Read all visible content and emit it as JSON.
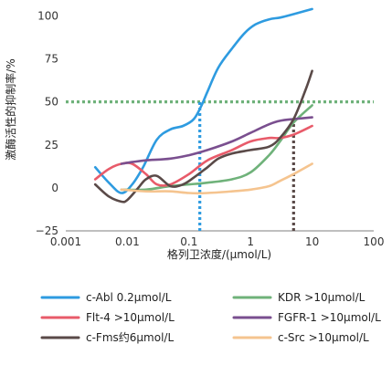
{
  "chart_data": {
    "type": "line",
    "xlabel": "格列卫浓度/(μmol/L)",
    "ylabel": "激酶活性的抑制率/%",
    "xscale": "log",
    "xlim": [
      0.001,
      100
    ],
    "ylim": [
      -25,
      105
    ],
    "x_ticks": [
      0.001,
      0.01,
      0.1,
      1,
      10,
      100
    ],
    "x_tick_labels": [
      "0.001",
      "0.01",
      "0.1",
      "1",
      "10",
      "100"
    ],
    "y_ticks": [
      100,
      75,
      50,
      25,
      0,
      -25
    ],
    "y_tick_labels": [
      "100",
      "75",
      "50",
      "25",
      "0",
      "−25"
    ],
    "grid": false,
    "legend_position": "bottom",
    "reference_lines": [
      {
        "type": "horizontal",
        "y": 50,
        "color": "#6fb27a",
        "style": "dotted"
      },
      {
        "type": "vertical",
        "x": 0.15,
        "y_to": 50,
        "color": "#2e9be0",
        "style": "dotted"
      },
      {
        "type": "vertical",
        "x": 5,
        "y_to": 41,
        "color": "#5a4a48",
        "style": "dotted"
      }
    ],
    "series": [
      {
        "name": "c-Abl 0.2μmol/L",
        "color": "#2e9be0",
        "x": [
          0.003,
          0.005,
          0.008,
          0.012,
          0.018,
          0.03,
          0.05,
          0.08,
          0.12,
          0.16,
          0.2,
          0.3,
          0.5,
          0.8,
          1.2,
          2,
          3,
          5,
          10
        ],
        "y": [
          12,
          3,
          -3,
          2,
          12,
          28,
          34,
          36,
          40,
          48,
          56,
          70,
          81,
          90,
          95,
          98,
          99,
          101,
          104
        ]
      },
      {
        "name": "KDR >10μmol/L",
        "color": "#6fb27a",
        "x": [
          0.008,
          0.02,
          0.05,
          0.1,
          0.2,
          0.5,
          1,
          2,
          3,
          5,
          10
        ],
        "y": [
          -1,
          -1,
          1,
          2,
          3,
          5,
          9,
          19,
          27,
          38,
          48
        ]
      },
      {
        "name": "Flt-4 >10μmol/L",
        "color": "#e85b6a",
        "x": [
          0.003,
          0.005,
          0.008,
          0.012,
          0.02,
          0.03,
          0.05,
          0.1,
          0.2,
          0.5,
          1,
          2,
          3,
          5,
          10
        ],
        "y": [
          5,
          11,
          14,
          14,
          8,
          2,
          2,
          8,
          16,
          22,
          27,
          29,
          29,
          31,
          36
        ]
      },
      {
        "name": "FGFR-1 >10μmol/L",
        "color": "#7a4f8f",
        "x": [
          0.008,
          0.012,
          0.02,
          0.05,
          0.1,
          0.2,
          0.5,
          1,
          2,
          3,
          5,
          10
        ],
        "y": [
          14,
          15,
          16,
          17,
          19,
          22,
          27,
          32,
          37,
          39,
          40,
          41
        ]
      },
      {
        "name": "c-Fms约6μmol/L",
        "color": "#5a4a48",
        "x": [
          0.003,
          0.005,
          0.008,
          0.01,
          0.015,
          0.02,
          0.03,
          0.05,
          0.08,
          0.12,
          0.2,
          0.3,
          0.5,
          1,
          2,
          3,
          5,
          8,
          10
        ],
        "y": [
          2,
          -5,
          -8,
          -7,
          0,
          5,
          7,
          1,
          2,
          6,
          12,
          17,
          20,
          22,
          24,
          29,
          40,
          58,
          68
        ]
      },
      {
        "name": "c-Src >10μmol/L",
        "color": "#f5c48f",
        "x": [
          0.008,
          0.02,
          0.05,
          0.1,
          0.2,
          0.5,
          1,
          2,
          3,
          5,
          10
        ],
        "y": [
          -1,
          -2,
          -2,
          -3,
          -3,
          -2,
          -1,
          1,
          4,
          8,
          14
        ]
      }
    ],
    "legend_order": [
      0,
      1,
      2,
      3,
      4,
      5
    ]
  }
}
